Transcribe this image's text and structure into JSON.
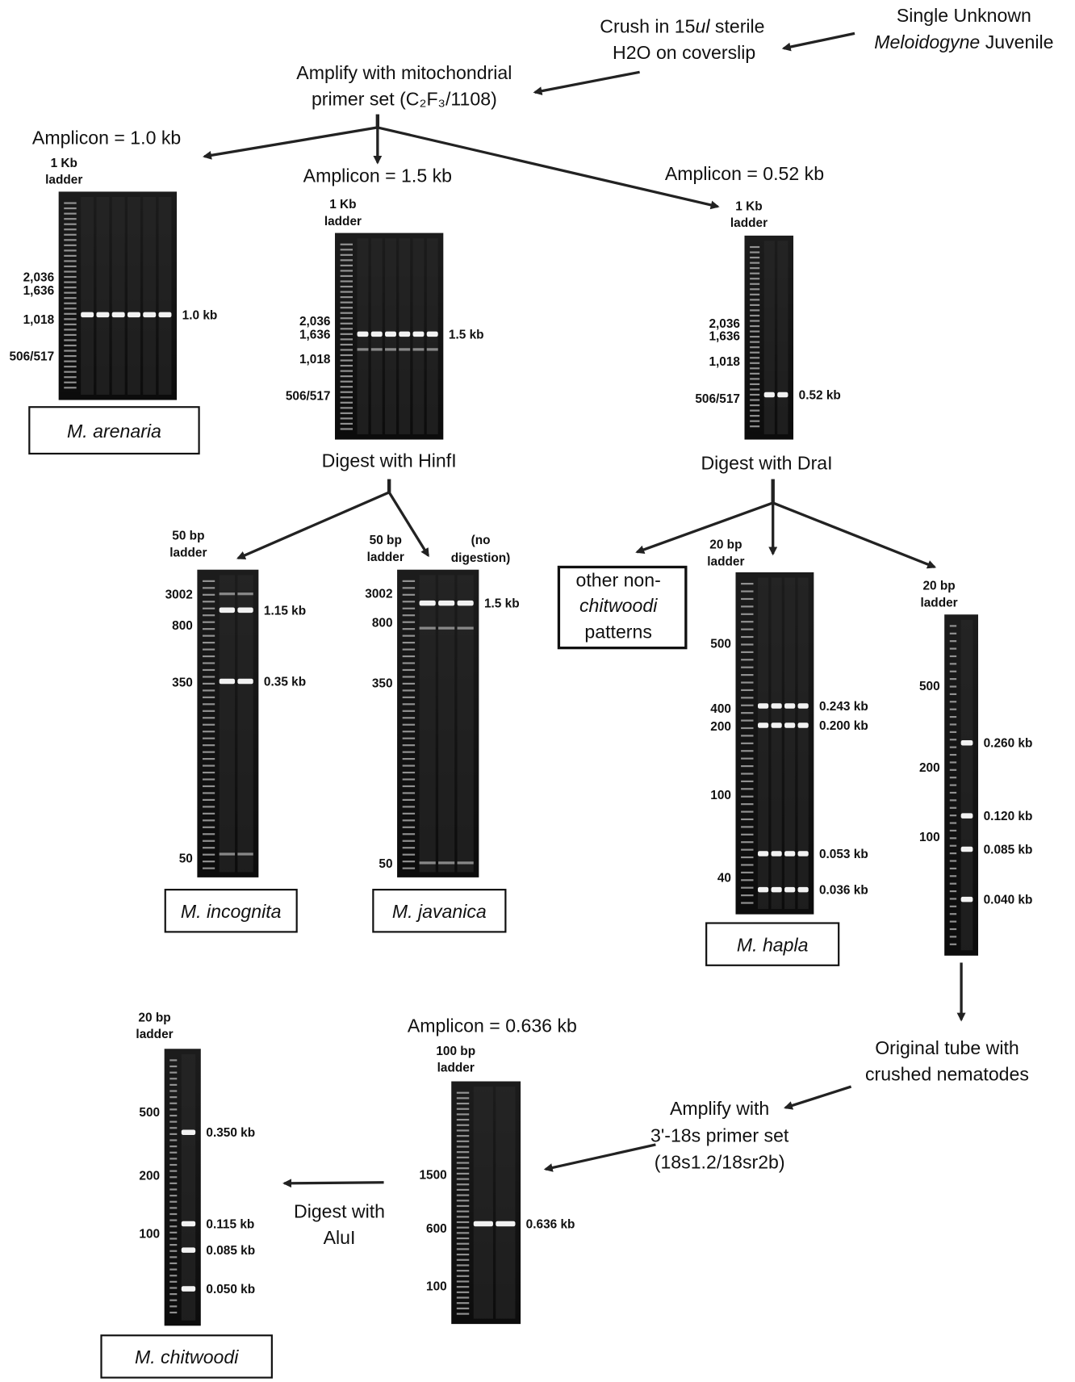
{
  "flow": {
    "start": [
      "Single Unknown",
      "Meloidogyne",
      " Juvenile"
    ],
    "crush": [
      "Crush in 15",
      "ul",
      " sterile",
      "H2O on coverslip"
    ],
    "amplify": [
      "Amplify with mitochondrial",
      "primer set (C₂F₃/1108)"
    ],
    "amplicon_a": "Amplicon = 1.0 kb",
    "amplicon_b": "Amplicon = 1.5 kb",
    "amplicon_c": "Amplicon = 0.52 kb",
    "digest_hinf": "Digest with HinfI",
    "digest_dra": "Digest with DraI",
    "other": [
      "other non-",
      "chitwoodi",
      "patterns"
    ],
    "no_digestion": [
      "(no",
      "digestion)"
    ],
    "original": [
      "Original tube with",
      "crushed nematodes"
    ],
    "amplify18s": [
      "Amplify with",
      "3'-18s primer set",
      "(18s1.2/18sr2b)"
    ],
    "amplicon_d": "Amplicon = 0.636 kb",
    "digest_alu": [
      "Digest with",
      "AluI"
    ]
  },
  "gels": [
    {
      "ladder": [
        "1 Kb",
        "ladder"
      ],
      "markers": [
        "2,036",
        "1,636",
        "1,018",
        "506/517"
      ],
      "bands": [
        "1.0 kb"
      ],
      "species": "M. arenaria"
    },
    {
      "ladder": [
        "1 Kb",
        "ladder"
      ],
      "markers": [
        "2,036",
        "1,636",
        "1,018",
        "506/517"
      ],
      "bands": [
        "1.5 kb"
      ]
    },
    {
      "ladder": [
        "50 bp",
        "ladder"
      ],
      "markers": [
        "3002",
        "800",
        "350",
        "50"
      ],
      "bands": [
        "1.15 kb",
        "0.35 kb"
      ],
      "species": "M. incognita"
    },
    {
      "ladder": [
        "50 bp",
        "ladder"
      ],
      "markers": [
        "3002",
        "800",
        "350",
        "50"
      ],
      "bands": [
        "1.5 kb"
      ],
      "species": "M. javanica"
    },
    {
      "ladder": [
        "1 Kb",
        "ladder"
      ],
      "markers": [
        "2,036",
        "1,636",
        "1,018",
        "506/517"
      ],
      "bands": [
        "0.52 kb"
      ]
    },
    {
      "ladder": [
        "20 bp",
        "ladder"
      ],
      "markers": [
        "500",
        "400",
        "200",
        "100",
        "40"
      ],
      "bands": [
        "0.243 kb",
        "0.200 kb",
        "0.053 kb",
        "0.036 kb"
      ],
      "species": "M. hapla"
    },
    {
      "ladder": [
        "20 bp",
        "ladder"
      ],
      "markers": [
        "500",
        "200",
        "100"
      ],
      "bands": [
        "0.260 kb",
        "0.120 kb",
        "0.085 kb",
        "0.040 kb"
      ]
    },
    {
      "ladder": [
        "100 bp",
        "ladder"
      ],
      "markers": [
        "1500",
        "600",
        "100"
      ],
      "bands": [
        "0.636 kb"
      ]
    },
    {
      "ladder": [
        "20 bp",
        "ladder"
      ],
      "markers": [
        "500",
        "200",
        "100"
      ],
      "bands": [
        "0.350 kb",
        "0.115 kb",
        "0.085 kb",
        "0.050 kb"
      ],
      "species": "M. chitwoodi"
    }
  ]
}
